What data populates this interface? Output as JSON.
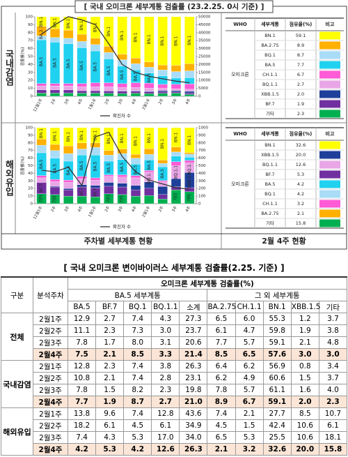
{
  "header": {
    "title": "[ 국내 오미크론 세부계통 검출률 (23.2.25. 0시 기준) ]"
  },
  "chart_data": [
    {
      "type": "stacked-bar-line",
      "y_label": "검출률(%)",
      "categories": [
        "12월1주",
        "2주",
        "3주",
        "4주",
        "1월1주",
        "2주",
        "3주",
        "4주",
        "2월1주",
        "2주",
        "3주",
        "4주"
      ],
      "ylim": [
        0,
        100
      ],
      "yticks": [
        0,
        10,
        20,
        30,
        40,
        50,
        60,
        70,
        80,
        90,
        100
      ],
      "y2lim": [
        0,
        50000
      ],
      "y2ticks": [
        0,
        5000,
        10000,
        15000,
        20000,
        25000,
        30000,
        35000,
        40000,
        45000,
        50000
      ],
      "grid": false,
      "series": [
        {
          "name": "기타",
          "color": "#00b050",
          "values": [
            4,
            4,
            4,
            4,
            4,
            3.7,
            3.5,
            3.9,
            3.4,
            3.7,
            4.0,
            2.3
          ]
        },
        {
          "name": "BF.7",
          "color": "#7030a0",
          "values": [
            4,
            4,
            4,
            3,
            3,
            3,
            3,
            2.5,
            2.3,
            2.1,
            1.5,
            1.9
          ]
        },
        {
          "name": "XBB.1.5",
          "color": "#1f3f9a",
          "values": [
            0,
            0,
            0,
            0,
            0,
            0.3,
            0.5,
            0.6,
            0.8,
            1.5,
            1.6,
            2.0
          ]
        },
        {
          "name": "BQ.1.1",
          "color": "#e9a6e6",
          "values": [
            5,
            5,
            5,
            5,
            5,
            5,
            4,
            4,
            3.8,
            2.8,
            2.3,
            2.7
          ]
        },
        {
          "name": "CH.1.1",
          "color": "#ff5bd6",
          "values": [
            3,
            3,
            3,
            4,
            5,
            5,
            5,
            6,
            6.2,
            4.9,
            5.7,
            6.7
          ]
        },
        {
          "name": "BA.5",
          "color": "#21d1f0",
          "values": [
            55,
            52,
            50,
            45,
            40,
            30,
            22,
            16,
            12.8,
            10.8,
            7.8,
            7.7
          ]
        },
        {
          "name": "BQ.1",
          "color": "#a9dcf7",
          "values": [
            5,
            6,
            7,
            8,
            8,
            8,
            8,
            8,
            7.4,
            7.4,
            8.2,
            8.7
          ]
        },
        {
          "name": "BA.2.75",
          "color": "#ffb000",
          "values": [
            12,
            11,
            10,
            9,
            8,
            8,
            7,
            7,
            6.4,
            6.2,
            7.8,
            8.9
          ]
        },
        {
          "name": "BN.1",
          "color": "#ffff00",
          "values": [
            12,
            15,
            17,
            22,
            27,
            37,
            47,
            52,
            56.9,
            60.6,
            61.1,
            59.1
          ]
        },
        {
          "name": "확진자 수",
          "color": "#333333",
          "axis": "y2",
          "values": [
            39000,
            45000,
            50000,
            48000,
            45000,
            33000,
            20000,
            15000,
            12500,
            11000,
            9500,
            8500
          ]
        }
      ]
    },
    {
      "type": "stacked-bar-line",
      "y_label": "검출률(%)",
      "categories": [
        "12월1주",
        "2주",
        "3주",
        "4주",
        "1월1주",
        "2주",
        "3주",
        "4주",
        "2월1주",
        "2주",
        "3주",
        "4주"
      ],
      "ylim": [
        0,
        100
      ],
      "yticks": [
        0,
        10,
        20,
        30,
        40,
        50,
        60,
        70,
        80,
        90,
        100
      ],
      "y2lim": [
        0,
        1000
      ],
      "y2ticks": [
        0,
        100,
        200,
        300,
        400,
        500,
        600,
        700,
        800,
        900,
        1000
      ],
      "grid": false,
      "series": [
        {
          "name": "기타",
          "color": "#00b050",
          "values": [
            13,
            12,
            10,
            10,
            9,
            13,
            12,
            10,
            10.7,
            6.1,
            18.1,
            15.8
          ]
        },
        {
          "name": "BF.7",
          "color": "#7030a0",
          "values": [
            15,
            10,
            8,
            12,
            12,
            10,
            10,
            8,
            9.6,
            6.1,
            4.3,
            5.3
          ]
        },
        {
          "name": "XBB.1.5",
          "color": "#1f3f9a",
          "values": [
            0,
            1,
            2,
            3,
            3,
            5,
            5,
            6,
            8.5,
            10.6,
            10.6,
            20.0
          ]
        },
        {
          "name": "BQ.1.1",
          "color": "#e9a6e6",
          "values": [
            6,
            6,
            8,
            8,
            7,
            8,
            8,
            10,
            12.8,
            6.1,
            17.0,
            12.6
          ]
        },
        {
          "name": "CH.1.1",
          "color": "#ff5bd6",
          "values": [
            3,
            3,
            3,
            3,
            3,
            2,
            3,
            3,
            2.1,
            1.5,
            5.3,
            3.2
          ]
        },
        {
          "name": "BA.5",
          "color": "#21d1f0",
          "values": [
            30,
            28,
            25,
            28,
            30,
            18,
            20,
            15,
            13.8,
            18.2,
            7.4,
            4.2
          ]
        },
        {
          "name": "BQ.1",
          "color": "#a9dcf7",
          "values": [
            10,
            10,
            10,
            8,
            10,
            8,
            8,
            8,
            7.4,
            4.5,
            5.3,
            4.2
          ]
        },
        {
          "name": "BA.2.75",
          "color": "#ffb000",
          "values": [
            8,
            8,
            10,
            8,
            6,
            6,
            6,
            5,
            7.4,
            4.5,
            6.5,
            2.1
          ]
        },
        {
          "name": "BN.1",
          "color": "#ffff00",
          "values": [
            15,
            22,
            24,
            20,
            20,
            30,
            28,
            35,
            27.7,
            42.4,
            25.5,
            32.6
          ]
        },
        {
          "name": "확진자 수",
          "color": "#333333",
          "axis": "y2",
          "values": [
            440,
            420,
            480,
            240,
            880,
            940,
            620,
            420,
            310,
            260,
            210,
            190
          ]
        }
      ]
    }
  ],
  "panels": [
    {
      "label": "국내감염",
      "table": {
        "columns": [
          "WHO",
          "세부계통",
          "점유율(%)",
          "비고"
        ],
        "group": "오미크론",
        "rows": [
          [
            "BN.1",
            "59.1"
          ],
          [
            "BA.2.75",
            "8.9"
          ],
          [
            "BQ.1",
            "8.7"
          ],
          [
            "BA.5",
            "7.7"
          ],
          [
            "CH.1.1",
            "6.7"
          ],
          [
            "BQ.1.1",
            "2.7"
          ],
          [
            "XBB.1.5",
            "2.0"
          ],
          [
            "BF.7",
            "1.9"
          ],
          [
            "기타",
            "2.3"
          ]
        ]
      }
    },
    {
      "label": "해외유입",
      "table": {
        "columns": [
          "WHO",
          "세부계통",
          "점유율(%)",
          "비고"
        ],
        "group": "오미크론",
        "rows": [
          [
            "BN.1",
            "32.6"
          ],
          [
            "XBB.1.5",
            "20.0"
          ],
          [
            "BQ.1.1",
            "12.6"
          ],
          [
            "BF.7",
            "5.3"
          ],
          [
            "BA.5",
            "4.2"
          ],
          [
            "BQ.1",
            "4.2"
          ],
          [
            "CH.1.1",
            "3.2"
          ],
          [
            "BA.2.75",
            "2.1"
          ],
          [
            "기타",
            "15.8"
          ]
        ]
      }
    }
  ],
  "footer": {
    "chart_caption": "주차별 세부계통 현황",
    "table_caption": "2월 4주 현황"
  },
  "detail_table": {
    "title": "[ 국내 오미크론 변이바이러스 세부계통 검출률(2.25. 기준) ]",
    "header": {
      "group": "구분",
      "week": "분석주차",
      "overall": "오미크론 세부계통 검출률(%)",
      "sub": [
        "BA.5 세부계통",
        "그 외 세부계통"
      ],
      "columns": [
        "BA.5",
        "BF.7",
        "BQ.1",
        "BQ.1.1",
        "소계",
        "BA.2.75",
        "CH.1.1",
        "BN.1",
        "XBB.1.5",
        "기타"
      ]
    },
    "groups": [
      {
        "name": "전체",
        "rows": [
          [
            "2월1주",
            "12.9",
            "2.7",
            "7.4",
            "4.3",
            "27.3",
            "6.5",
            "6.0",
            "55.3",
            "1.2",
            "3.7"
          ],
          [
            "2월2주",
            "11.1",
            "2.3",
            "7.3",
            "3.0",
            "23.7",
            "6.1",
            "4.7",
            "59.8",
            "1.9",
            "3.8"
          ],
          [
            "2월3주",
            "7.8",
            "1.7",
            "8.0",
            "3.1",
            "20.6",
            "7.7",
            "5.7",
            "59.1",
            "2.1",
            "4.8"
          ],
          [
            "2월4주",
            "7.5",
            "2.1",
            "8.5",
            "3.3",
            "21.4",
            "8.5",
            "6.5",
            "57.6",
            "3.0",
            "3.0"
          ]
        ]
      },
      {
        "name": "국내감염",
        "rows": [
          [
            "2월1주",
            "12.8",
            "2.3",
            "7.4",
            "3.8",
            "26.3",
            "6.4",
            "6.2",
            "56.9",
            "0.8",
            "3.4"
          ],
          [
            "2월2주",
            "10.8",
            "2.1",
            "7.4",
            "2.8",
            "23.1",
            "6.2",
            "4.9",
            "60.6",
            "1.5",
            "3.7"
          ],
          [
            "2월3주",
            "7.8",
            "1.5",
            "8.2",
            "2.3",
            "19.8",
            "7.8",
            "5.7",
            "61.1",
            "1.6",
            "4.0"
          ],
          [
            "2월4주",
            "7.7",
            "1.9",
            "8.7",
            "2.7",
            "21.0",
            "8.9",
            "6.7",
            "59.1",
            "2.0",
            "2.3"
          ]
        ]
      },
      {
        "name": "해외유입",
        "rows": [
          [
            "2월1주",
            "13.8",
            "9.6",
            "7.4",
            "12.8",
            "43.6",
            "7.4",
            "2.1",
            "27.7",
            "8.5",
            "10.7"
          ],
          [
            "2월2주",
            "18.2",
            "6.1",
            "4.5",
            "6.1",
            "34.9",
            "4.5",
            "1.5",
            "42.4",
            "10.6",
            "6.1"
          ],
          [
            "2월3주",
            "7.4",
            "4.3",
            "5.3",
            "17.0",
            "34.0",
            "6.5",
            "5.3",
            "25.5",
            "10.6",
            "18.1"
          ],
          [
            "2월4주",
            "4.2",
            "5.3",
            "4.2",
            "12.6",
            "26.3",
            "2.1",
            "3.2",
            "32.6",
            "20.0",
            "15.8"
          ]
        ]
      }
    ]
  }
}
